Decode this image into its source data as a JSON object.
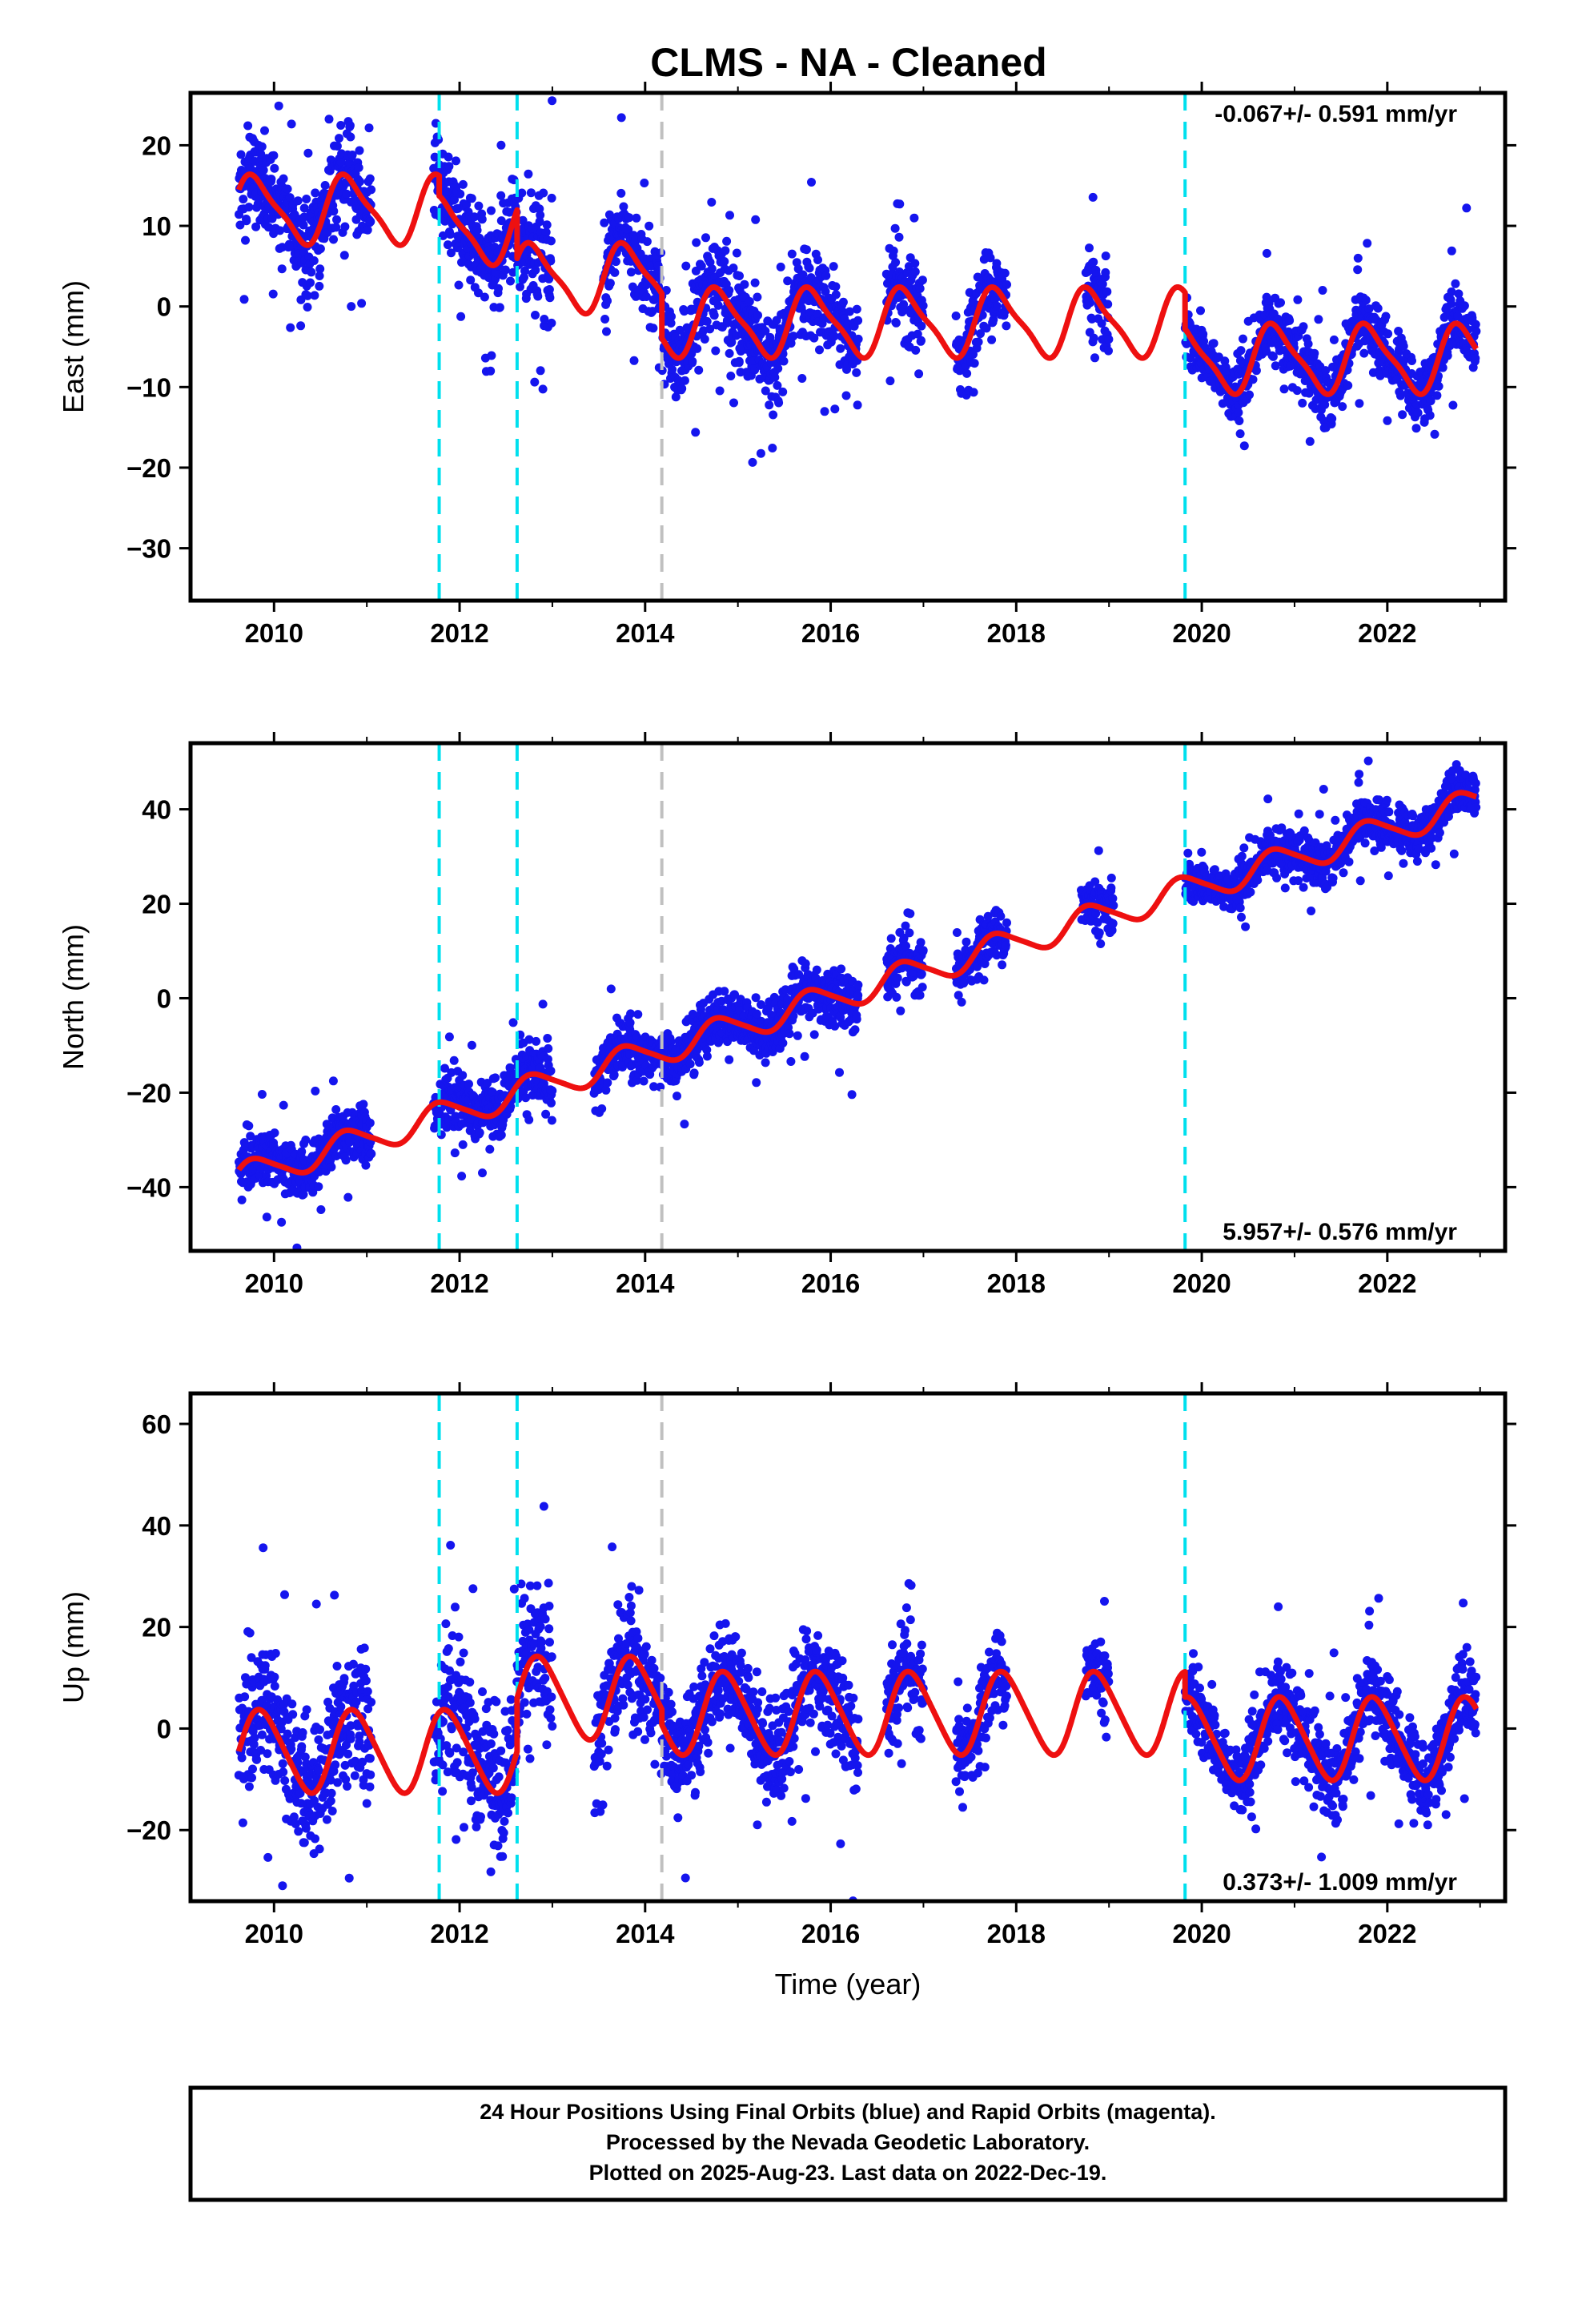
{
  "title": "CLMS  - NA - Cleaned",
  "xlabel": "Time (year)",
  "footer": {
    "line1": "24 Hour Positions Using Final Orbits (blue) and Rapid Orbits (magenta).",
    "line2": "Processed by the Nevada Geodetic Laboratory.",
    "line3": "Plotted on 2025-Aug-23. Last data on 2022-Dec-19."
  },
  "colors": {
    "points": "#1515ee",
    "model": "#ee1010",
    "equipment_change": "#00e0ee",
    "other_change": "#c0c0c0"
  },
  "chart_data": [
    {
      "type": "scatter",
      "component": "east",
      "ylabel": "East (mm)",
      "rate_label": "-0.067+/- 0.591 mm/yr",
      "rate_position": "top-right",
      "xlim": [
        2009.1,
        2023.27
      ],
      "ylim": [
        -36.5,
        26.5
      ],
      "xticks": [
        2010,
        2012,
        2014,
        2016,
        2018,
        2020,
        2022
      ],
      "yticks": [
        -30,
        -20,
        -10,
        0,
        10,
        20
      ],
      "steps_cyan": [
        2011.78,
        2012.62,
        2019.82
      ],
      "steps_gray": [
        2014.18
      ],
      "model": {
        "name": "model",
        "segments": [
          {
            "x0": 2009.62,
            "x1": 2011.78,
            "offset": 12.0,
            "rate": 0.0
          },
          {
            "x0": 2011.78,
            "x1": 2012.62,
            "offset": 9.5,
            "rate": 0.0
          },
          {
            "x0": 2012.62,
            "x1": 2014.18,
            "offset": 3.5,
            "rate": 0.0
          },
          {
            "x0": 2014.18,
            "x1": 2019.82,
            "offset": -2.0,
            "rate": 0.0
          },
          {
            "x0": 2019.82,
            "x1": 2022.96,
            "offset": -6.5,
            "rate": 0.0
          }
        ],
        "annual_amp": 4.0,
        "annual_phase": 2009.55,
        "semiannual_amp": 1.0,
        "semiannual_phase": 2009.55
      },
      "data_segments": [
        {
          "x0": 2009.62,
          "x1": 2011.05,
          "scatter": 3.0
        },
        {
          "x0": 2011.72,
          "x1": 2012.62,
          "scatter": 3.0
        },
        {
          "x0": 2012.62,
          "x1": 2013.0,
          "scatter": 4.0
        },
        {
          "x0": 2013.55,
          "x1": 2014.25,
          "scatter": 3.0
        },
        {
          "x0": 2014.25,
          "x1": 2015.2,
          "scatter": 3.0
        },
        {
          "x0": 2015.0,
          "x1": 2016.3,
          "scatter": 2.5
        },
        {
          "x0": 2016.6,
          "x1": 2017.0,
          "scatter": 3.0
        },
        {
          "x0": 2017.35,
          "x1": 2017.9,
          "scatter": 2.5
        },
        {
          "x0": 2018.75,
          "x1": 2019.0,
          "scatter": 3.0
        },
        {
          "x0": 2019.82,
          "x1": 2022.96,
          "scatter": 2.0
        }
      ]
    },
    {
      "type": "scatter",
      "component": "north",
      "ylabel": "North (mm)",
      "rate_label": "5.957+/- 0.576 mm/yr",
      "rate_position": "bottom-right",
      "xlim": [
        2009.1,
        2023.27
      ],
      "ylim": [
        -53.5,
        54.0
      ],
      "xticks": [
        2010,
        2012,
        2014,
        2016,
        2018,
        2020,
        2022
      ],
      "yticks": [
        -40,
        -20,
        0,
        20,
        40
      ],
      "steps_cyan": [
        2011.78,
        2012.62,
        2019.82
      ],
      "steps_gray": [
        2014.18
      ],
      "model": {
        "name": "model",
        "segments": [
          {
            "x0": 2009.62,
            "x1": 2022.96,
            "offset": -38.0,
            "rate": 5.957,
            "t0": 2009.62
          }
        ],
        "annual_amp": 3.0,
        "annual_phase": 2009.55,
        "semiannual_amp": 0.5,
        "semiannual_phase": 2009.55
      },
      "data_segments": [
        {
          "x0": 2009.62,
          "x1": 2011.05,
          "scatter": 3.0
        },
        {
          "x0": 2011.72,
          "x1": 2012.62,
          "scatter": 3.0
        },
        {
          "x0": 2012.62,
          "x1": 2013.0,
          "scatter": 3.5
        },
        {
          "x0": 2013.45,
          "x1": 2014.25,
          "scatter": 3.0
        },
        {
          "x0": 2014.25,
          "x1": 2016.3,
          "scatter": 3.0
        },
        {
          "x0": 2016.6,
          "x1": 2017.0,
          "scatter": 3.0
        },
        {
          "x0": 2017.35,
          "x1": 2017.9,
          "scatter": 2.5
        },
        {
          "x0": 2018.7,
          "x1": 2019.05,
          "scatter": 3.0
        },
        {
          "x0": 2019.82,
          "x1": 2022.96,
          "scatter": 2.5
        }
      ]
    },
    {
      "type": "scatter",
      "component": "up",
      "ylabel": "Up (mm)",
      "rate_label": "0.373+/- 1.009 mm/yr",
      "rate_position": "bottom-right",
      "xlim": [
        2009.1,
        2023.27
      ],
      "ylim": [
        -34.0,
        66.0
      ],
      "xticks": [
        2010,
        2012,
        2014,
        2016,
        2018,
        2020,
        2022
      ],
      "yticks": [
        -20,
        0,
        20,
        40,
        60
      ],
      "steps_cyan": [
        2011.78,
        2012.62,
        2019.82
      ],
      "steps_gray": [
        2014.18
      ],
      "model": {
        "name": "model",
        "segments": [
          {
            "x0": 2009.62,
            "x1": 2012.62,
            "offset": -4.5,
            "rate": 0.0
          },
          {
            "x0": 2012.62,
            "x1": 2014.18,
            "offset": 6.0,
            "rate": 0.0
          },
          {
            "x0": 2014.18,
            "x1": 2019.82,
            "offset": 3.0,
            "rate": 0.0
          },
          {
            "x0": 2019.82,
            "x1": 2022.96,
            "offset": -2.0,
            "rate": 0.0
          }
        ],
        "annual_amp": 8.0,
        "annual_phase": 2009.62,
        "semiannual_amp": 1.0,
        "semiannual_phase": 2009.62
      },
      "data_segments": [
        {
          "x0": 2009.62,
          "x1": 2011.05,
          "scatter": 7.0
        },
        {
          "x0": 2011.72,
          "x1": 2012.62,
          "scatter": 7.0
        },
        {
          "x0": 2012.62,
          "x1": 2013.0,
          "scatter": 7.0
        },
        {
          "x0": 2013.45,
          "x1": 2014.25,
          "scatter": 6.0
        },
        {
          "x0": 2014.25,
          "x1": 2016.3,
          "scatter": 5.0
        },
        {
          "x0": 2016.6,
          "x1": 2017.0,
          "scatter": 5.0
        },
        {
          "x0": 2017.35,
          "x1": 2017.9,
          "scatter": 4.0
        },
        {
          "x0": 2018.75,
          "x1": 2019.0,
          "scatter": 4.0
        },
        {
          "x0": 2019.82,
          "x1": 2022.96,
          "scatter": 4.0
        }
      ]
    }
  ]
}
